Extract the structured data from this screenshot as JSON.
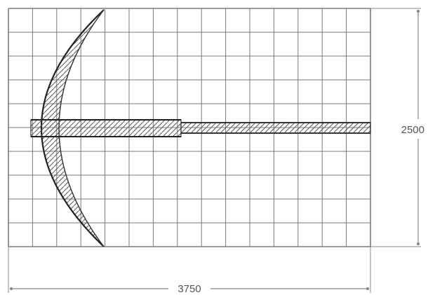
{
  "dimensions": {
    "width_label": "3750",
    "height_label": "2500"
  },
  "grid": {
    "columns": 15,
    "rows": 10
  },
  "colors": {
    "grid_line": "#7a7a7a",
    "outline": "#222222",
    "hatch": "#555555",
    "dimension": "#888888",
    "dimension_text": "#555555"
  }
}
